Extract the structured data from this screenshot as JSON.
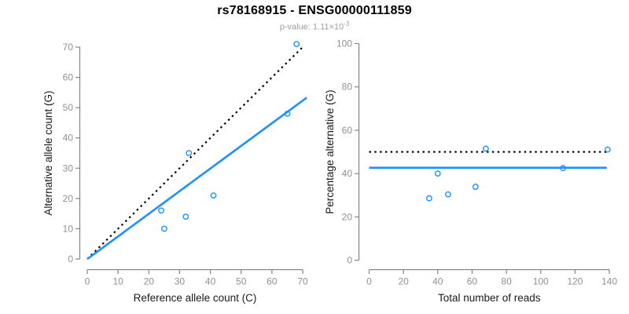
{
  "header": {
    "title": "rs78168915 - ENSG00000111859",
    "subtitle_prefix": "p-value: 1.11×10",
    "subtitle_exponent": "-3"
  },
  "colors": {
    "series_blue": "#1E90FF",
    "identity_black": "#000000",
    "axis_line_gray": "#848484",
    "tick_label_gray": "#909090",
    "axis_title_dark": "#1a1a1a",
    "subtitle_gray": "#9e9e9e"
  },
  "chart_data": [
    {
      "type": "scatter",
      "name": "allele-counts-scatter",
      "xlabel": "Reference allele count (C)",
      "ylabel": "Alternative allele count (G)",
      "xlim": [
        0,
        70
      ],
      "ylim": [
        0,
        70
      ],
      "xticks": [
        0,
        10,
        20,
        30,
        40,
        50,
        60,
        70
      ],
      "yticks": [
        0,
        10,
        20,
        30,
        40,
        50,
        60,
        70
      ],
      "grid": false,
      "marker": "open-circle",
      "point_color": "#1E90FF",
      "points": [
        [
          24,
          16
        ],
        [
          25,
          10
        ],
        [
          32,
          14
        ],
        [
          33,
          35
        ],
        [
          41,
          21
        ],
        [
          65,
          48
        ],
        [
          68,
          71
        ]
      ],
      "lines": [
        {
          "name": "identity",
          "style": "dotted",
          "color": "#000000",
          "from": [
            0,
            0
          ],
          "to": [
            70.5,
            70.5
          ]
        },
        {
          "name": "regression",
          "style": "solid",
          "color": "#1E90FF",
          "from": [
            0,
            0
          ],
          "to": [
            71.3,
            53.3
          ]
        }
      ]
    },
    {
      "type": "scatter",
      "name": "percentage-vs-coverage-scatter",
      "xlabel": "Total number of reads",
      "ylabel": "Percentage alternative (G)",
      "xlim": [
        0,
        140
      ],
      "ylim": [
        0,
        100
      ],
      "xticks": [
        0,
        20,
        40,
        60,
        80,
        100,
        120,
        140
      ],
      "yticks": [
        0,
        20,
        40,
        60,
        80,
        100
      ],
      "grid": false,
      "marker": "open-circle",
      "point_color": "#1E90FF",
      "points": [
        [
          35,
          28.6
        ],
        [
          40,
          40
        ],
        [
          46,
          30.4
        ],
        [
          62,
          33.9
        ],
        [
          68,
          51.5
        ],
        [
          113,
          42.5
        ],
        [
          139,
          51.1
        ]
      ],
      "lines": [
        {
          "name": "expected-50-percent",
          "style": "dotted",
          "color": "#000000",
          "from": [
            0,
            50
          ],
          "to": [
            138.5,
            50
          ]
        },
        {
          "name": "mean-percentage",
          "style": "solid",
          "color": "#1E90FF",
          "from": [
            0,
            42.7
          ],
          "to": [
            138.5,
            42.7
          ]
        }
      ]
    }
  ]
}
